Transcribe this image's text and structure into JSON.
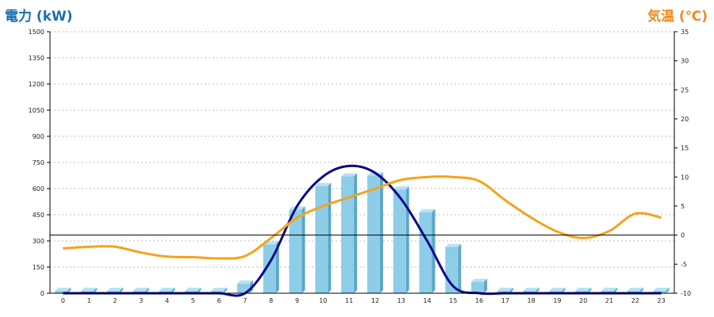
{
  "colors": {
    "left_title": "#1a6fb0",
    "right_title": "#f08a1c",
    "bar_front": "#8ecde8",
    "bar_side": "#5aa7c9",
    "bar_top": "#b9e2f3",
    "power_line": "#0a0a8c",
    "temp_line": "#f5a31a",
    "grid": "#bbbbbb",
    "axis": "#000000"
  },
  "chart_data": {
    "type": "bar",
    "left_axis_title": "電力 (kW)",
    "right_axis_title": "気温 (℃)",
    "categories": [
      "0",
      "1",
      "2",
      "3",
      "4",
      "5",
      "6",
      "7",
      "8",
      "9",
      "10",
      "11",
      "12",
      "13",
      "14",
      "15",
      "16",
      "17",
      "18",
      "19",
      "20",
      "21",
      "22",
      "23"
    ],
    "y_left": {
      "min": 0,
      "max": 1500,
      "ticks": [
        "0",
        "150",
        "300",
        "450",
        "600",
        "750",
        "900",
        "1050",
        "1200",
        "1350",
        "1500"
      ]
    },
    "y_right": {
      "min": -10,
      "max": 35,
      "ticks": [
        "-10",
        "-5",
        "0",
        "5",
        "10",
        "15",
        "20",
        "25",
        "30",
        "35"
      ]
    },
    "grid": true,
    "series": [
      {
        "kind": "bar",
        "axis": "left",
        "values": [
          0,
          0,
          0,
          0,
          0,
          0,
          0,
          55,
          280,
          480,
          615,
          670,
          675,
          595,
          465,
          265,
          65,
          0,
          0,
          0,
          0,
          0,
          0,
          0
        ]
      },
      {
        "kind": "line",
        "axis": "left",
        "values": [
          0,
          0,
          0,
          0,
          0,
          0,
          0,
          0,
          190,
          500,
          670,
          730,
          690,
          540,
          300,
          40,
          0,
          0,
          0,
          0,
          0,
          0,
          0,
          0
        ]
      },
      {
        "kind": "line",
        "axis": "right",
        "values": [
          -2.3,
          -2,
          -2,
          -3,
          -3.7,
          -3.8,
          -4,
          -3.6,
          -0.5,
          3,
          5,
          6.5,
          8,
          9.5,
          10,
          10,
          9.3,
          6,
          3,
          0.6,
          -0.5,
          0.7,
          3.7,
          3
        ]
      }
    ]
  }
}
